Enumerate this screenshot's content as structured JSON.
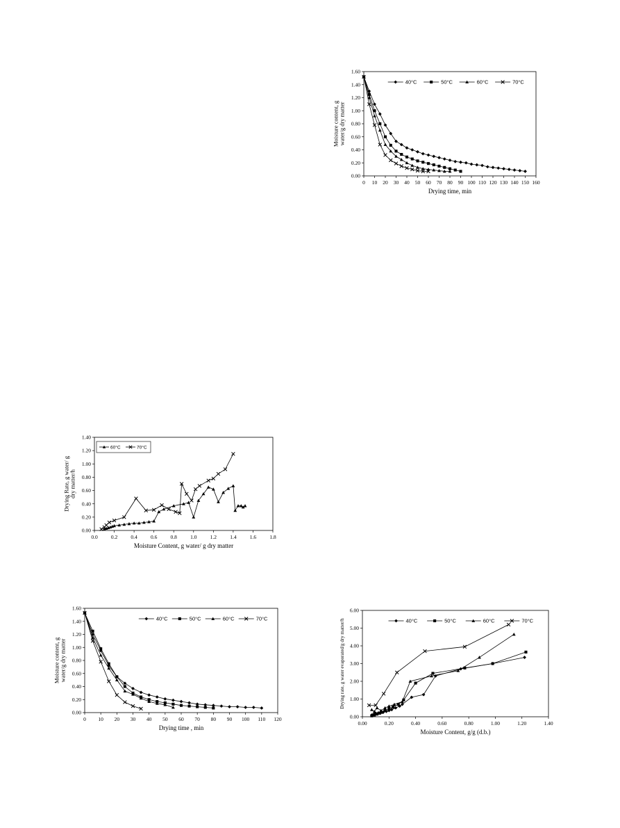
{
  "chart_data": [
    {
      "type": "line",
      "xlabel": "Drying time, min",
      "ylabel": "Moisture content, g water/g dry matter",
      "xlim": [
        0,
        160
      ],
      "ylim": [
        0,
        1.6
      ],
      "xticks": [
        "0",
        "10",
        "20",
        "30",
        "40",
        "50",
        "60",
        "70",
        "80",
        "90",
        "100",
        "110",
        "120",
        "130",
        "140",
        "150",
        "160"
      ],
      "yticks": [
        "0.00",
        "0.20",
        "0.40",
        "0.60",
        "0.80",
        "1.00",
        "1.20",
        "1.40",
        "1.60"
      ],
      "legend_position": "top",
      "series": [
        {
          "name": "40°C",
          "marker": "diamond",
          "x": [
            0,
            5,
            10,
            15,
            20,
            25,
            30,
            35,
            40,
            45,
            50,
            55,
            60,
            65,
            70,
            75,
            80,
            85,
            90,
            95,
            100,
            105,
            110,
            115,
            120,
            125,
            130,
            135,
            140,
            145,
            150
          ],
          "y": [
            1.52,
            1.3,
            1.1,
            0.95,
            0.78,
            0.65,
            0.53,
            0.48,
            0.43,
            0.4,
            0.37,
            0.34,
            0.32,
            0.3,
            0.28,
            0.26,
            0.24,
            0.22,
            0.21,
            0.2,
            0.18,
            0.17,
            0.16,
            0.14,
            0.13,
            0.12,
            0.11,
            0.1,
            0.09,
            0.08,
            0.07
          ]
        },
        {
          "name": "50°C",
          "marker": "square",
          "x": [
            0,
            5,
            10,
            15,
            20,
            25,
            30,
            35,
            40,
            45,
            50,
            55,
            60,
            65,
            70,
            75,
            80,
            85,
            90
          ],
          "y": [
            1.52,
            1.25,
            1.0,
            0.8,
            0.6,
            0.47,
            0.38,
            0.33,
            0.29,
            0.26,
            0.23,
            0.21,
            0.19,
            0.17,
            0.15,
            0.13,
            0.11,
            0.09,
            0.07
          ]
        },
        {
          "name": "60°C",
          "marker": "triangle",
          "x": [
            0,
            5,
            10,
            15,
            20,
            25,
            30,
            35,
            40,
            45,
            50,
            55,
            60,
            65,
            70,
            75,
            80
          ],
          "y": [
            1.52,
            1.2,
            0.92,
            0.7,
            0.48,
            0.38,
            0.3,
            0.25,
            0.2,
            0.16,
            0.13,
            0.11,
            0.1,
            0.09,
            0.08,
            0.07,
            0.07
          ]
        },
        {
          "name": "70°C",
          "marker": "cross",
          "x": [
            0,
            5,
            10,
            15,
            20,
            25,
            30,
            35,
            40,
            45,
            50,
            55,
            60
          ],
          "y": [
            1.52,
            1.1,
            0.78,
            0.48,
            0.32,
            0.24,
            0.19,
            0.15,
            0.12,
            0.1,
            0.08,
            0.07,
            0.07
          ]
        }
      ]
    },
    {
      "type": "line",
      "xlabel": "Moisture Content, g water/ g dry matter",
      "ylabel": "Drying Rate, g water/ g dry matter/h",
      "xlim": [
        0,
        1.8
      ],
      "ylim": [
        0,
        1.4
      ],
      "xticks": [
        "0.0",
        "0.2",
        "0.4",
        "0.6",
        "0.8",
        "1.0",
        "1.2",
        "1.4",
        "1.6",
        "1.8"
      ],
      "yticks": [
        "0.00",
        "0.20",
        "0.40",
        "0.60",
        "0.80",
        "1.00",
        "1.20",
        "1.40"
      ],
      "legend_position": "top-left",
      "series": [
        {
          "name": "60°C",
          "marker": "triangle",
          "x": [
            0.1,
            0.12,
            0.14,
            0.16,
            0.18,
            0.2,
            0.25,
            0.3,
            0.35,
            0.4,
            0.45,
            0.5,
            0.55,
            0.6,
            0.65,
            0.7,
            0.8,
            0.9,
            0.95,
            1.0,
            1.05,
            1.1,
            1.15,
            1.2,
            1.25,
            1.3,
            1.35,
            1.4,
            1.42,
            1.45,
            1.48,
            1.5,
            1.52
          ],
          "y": [
            0.02,
            0.03,
            0.04,
            0.05,
            0.06,
            0.07,
            0.08,
            0.09,
            0.1,
            0.11,
            0.11,
            0.12,
            0.13,
            0.14,
            0.28,
            0.32,
            0.37,
            0.4,
            0.42,
            0.2,
            0.45,
            0.55,
            0.65,
            0.62,
            0.43,
            0.57,
            0.63,
            0.67,
            0.3,
            0.37,
            0.37,
            0.35,
            0.37
          ]
        },
        {
          "name": "70°C",
          "marker": "cross",
          "x": [
            0.07,
            0.1,
            0.12,
            0.15,
            0.2,
            0.3,
            0.42,
            0.52,
            0.6,
            0.68,
            0.75,
            0.82,
            0.86,
            0.88,
            0.93,
            0.98,
            1.02,
            1.06,
            1.15,
            1.2,
            1.25,
            1.32,
            1.4
          ],
          "y": [
            0.02,
            0.05,
            0.08,
            0.12,
            0.15,
            0.2,
            0.48,
            0.3,
            0.31,
            0.38,
            0.32,
            0.28,
            0.26,
            0.7,
            0.55,
            0.45,
            0.62,
            0.67,
            0.75,
            0.78,
            0.85,
            0.92,
            1.15
          ]
        }
      ]
    },
    {
      "type": "line",
      "xlabel": "Drying time , min",
      "ylabel": "Moisture content, g water/g dry matter",
      "xlim": [
        0,
        120
      ],
      "ylim": [
        0,
        1.6
      ],
      "xticks": [
        "0",
        "10",
        "20",
        "30",
        "40",
        "50",
        "60",
        "70",
        "80",
        "90",
        "100",
        "110",
        "120"
      ],
      "yticks": [
        "0.00",
        "0.20",
        "0.40",
        "0.60",
        "0.80",
        "1.00",
        "1.20",
        "1.40",
        "1.60"
      ],
      "legend_position": "top-right",
      "series": [
        {
          "name": "40°C",
          "marker": "diamond",
          "x": [
            0,
            5,
            10,
            15,
            20,
            25,
            30,
            35,
            40,
            45,
            50,
            55,
            60,
            65,
            70,
            75,
            80,
            85,
            90,
            95,
            100,
            105,
            110
          ],
          "y": [
            1.53,
            1.2,
            0.95,
            0.72,
            0.55,
            0.45,
            0.37,
            0.31,
            0.27,
            0.24,
            0.21,
            0.19,
            0.17,
            0.15,
            0.13,
            0.12,
            0.11,
            0.1,
            0.09,
            0.09,
            0.08,
            0.08,
            0.07
          ]
        },
        {
          "name": "50°C",
          "marker": "square",
          "x": [
            0,
            5,
            10,
            15,
            20,
            25,
            30,
            35,
            40,
            45,
            50,
            55,
            60,
            65,
            70,
            75,
            80
          ],
          "y": [
            1.53,
            1.25,
            0.98,
            0.75,
            0.55,
            0.4,
            0.3,
            0.24,
            0.2,
            0.17,
            0.15,
            0.13,
            0.11,
            0.1,
            0.09,
            0.08,
            0.07
          ]
        },
        {
          "name": "60°C",
          "marker": "triangle",
          "x": [
            0,
            5,
            10,
            15,
            20,
            25,
            30,
            35,
            40,
            45,
            50,
            55
          ],
          "y": [
            1.53,
            1.15,
            0.88,
            0.68,
            0.5,
            0.33,
            0.28,
            0.22,
            0.17,
            0.14,
            0.12,
            0.08
          ]
        },
        {
          "name": "70°C",
          "marker": "cross",
          "x": [
            0,
            5,
            10,
            15,
            20,
            25,
            30,
            35
          ],
          "y": [
            1.53,
            1.1,
            0.78,
            0.48,
            0.27,
            0.16,
            0.1,
            0.06
          ]
        }
      ]
    },
    {
      "type": "line",
      "xlabel": "Moisture Content, g/g (d.b.)",
      "ylabel": "Drying rate, g water evaporated/g dry matter/h",
      "xlim": [
        0,
        1.4
      ],
      "ylim": [
        0,
        6
      ],
      "xticks": [
        "0.00",
        "0.20",
        "0.40",
        "0.60",
        "0.80",
        "1.00",
        "1.20",
        "1.40"
      ],
      "yticks": [
        "0.00",
        "1.00",
        "2.00",
        "3.00",
        "4.00",
        "5.00",
        "6.00"
      ],
      "legend_position": "top",
      "series": [
        {
          "name": "40°C",
          "marker": "diamond",
          "x": [
            0.07,
            0.08,
            0.09,
            0.1,
            0.12,
            0.14,
            0.16,
            0.18,
            0.2,
            0.22,
            0.25,
            0.28,
            0.3,
            0.37,
            0.46,
            0.55,
            0.74,
            0.98,
            1.22
          ],
          "y": [
            0.1,
            0.12,
            0.15,
            0.2,
            0.22,
            0.25,
            0.28,
            0.3,
            0.35,
            0.4,
            0.5,
            0.6,
            0.7,
            1.1,
            1.25,
            2.3,
            2.7,
            3.0,
            3.35
          ]
        },
        {
          "name": "50°C",
          "marker": "square",
          "x": [
            0.07,
            0.09,
            0.11,
            0.13,
            0.15,
            0.17,
            0.2,
            0.23,
            0.27,
            0.31,
            0.4,
            0.53,
            0.77,
            0.98,
            1.23
          ],
          "y": [
            0.05,
            0.1,
            0.15,
            0.2,
            0.25,
            0.35,
            0.45,
            0.55,
            0.7,
            0.95,
            1.9,
            2.45,
            2.75,
            3.0,
            3.65
          ]
        },
        {
          "name": "60°C",
          "marker": "triangle",
          "x": [
            0.07,
            0.09,
            0.11,
            0.14,
            0.17,
            0.2,
            0.24,
            0.3,
            0.36,
            0.52,
            0.72,
            0.88,
            1.14
          ],
          "y": [
            0.4,
            0.3,
            0.5,
            0.35,
            0.5,
            0.6,
            0.7,
            0.85,
            2.0,
            2.3,
            2.6,
            3.35,
            4.65
          ]
        },
        {
          "name": "70°C",
          "marker": "cross",
          "x": [
            0.05,
            0.1,
            0.16,
            0.26,
            0.47,
            0.77,
            1.1
          ],
          "y": [
            0.65,
            0.65,
            1.3,
            2.5,
            3.7,
            3.95,
            5.2
          ]
        }
      ]
    }
  ]
}
